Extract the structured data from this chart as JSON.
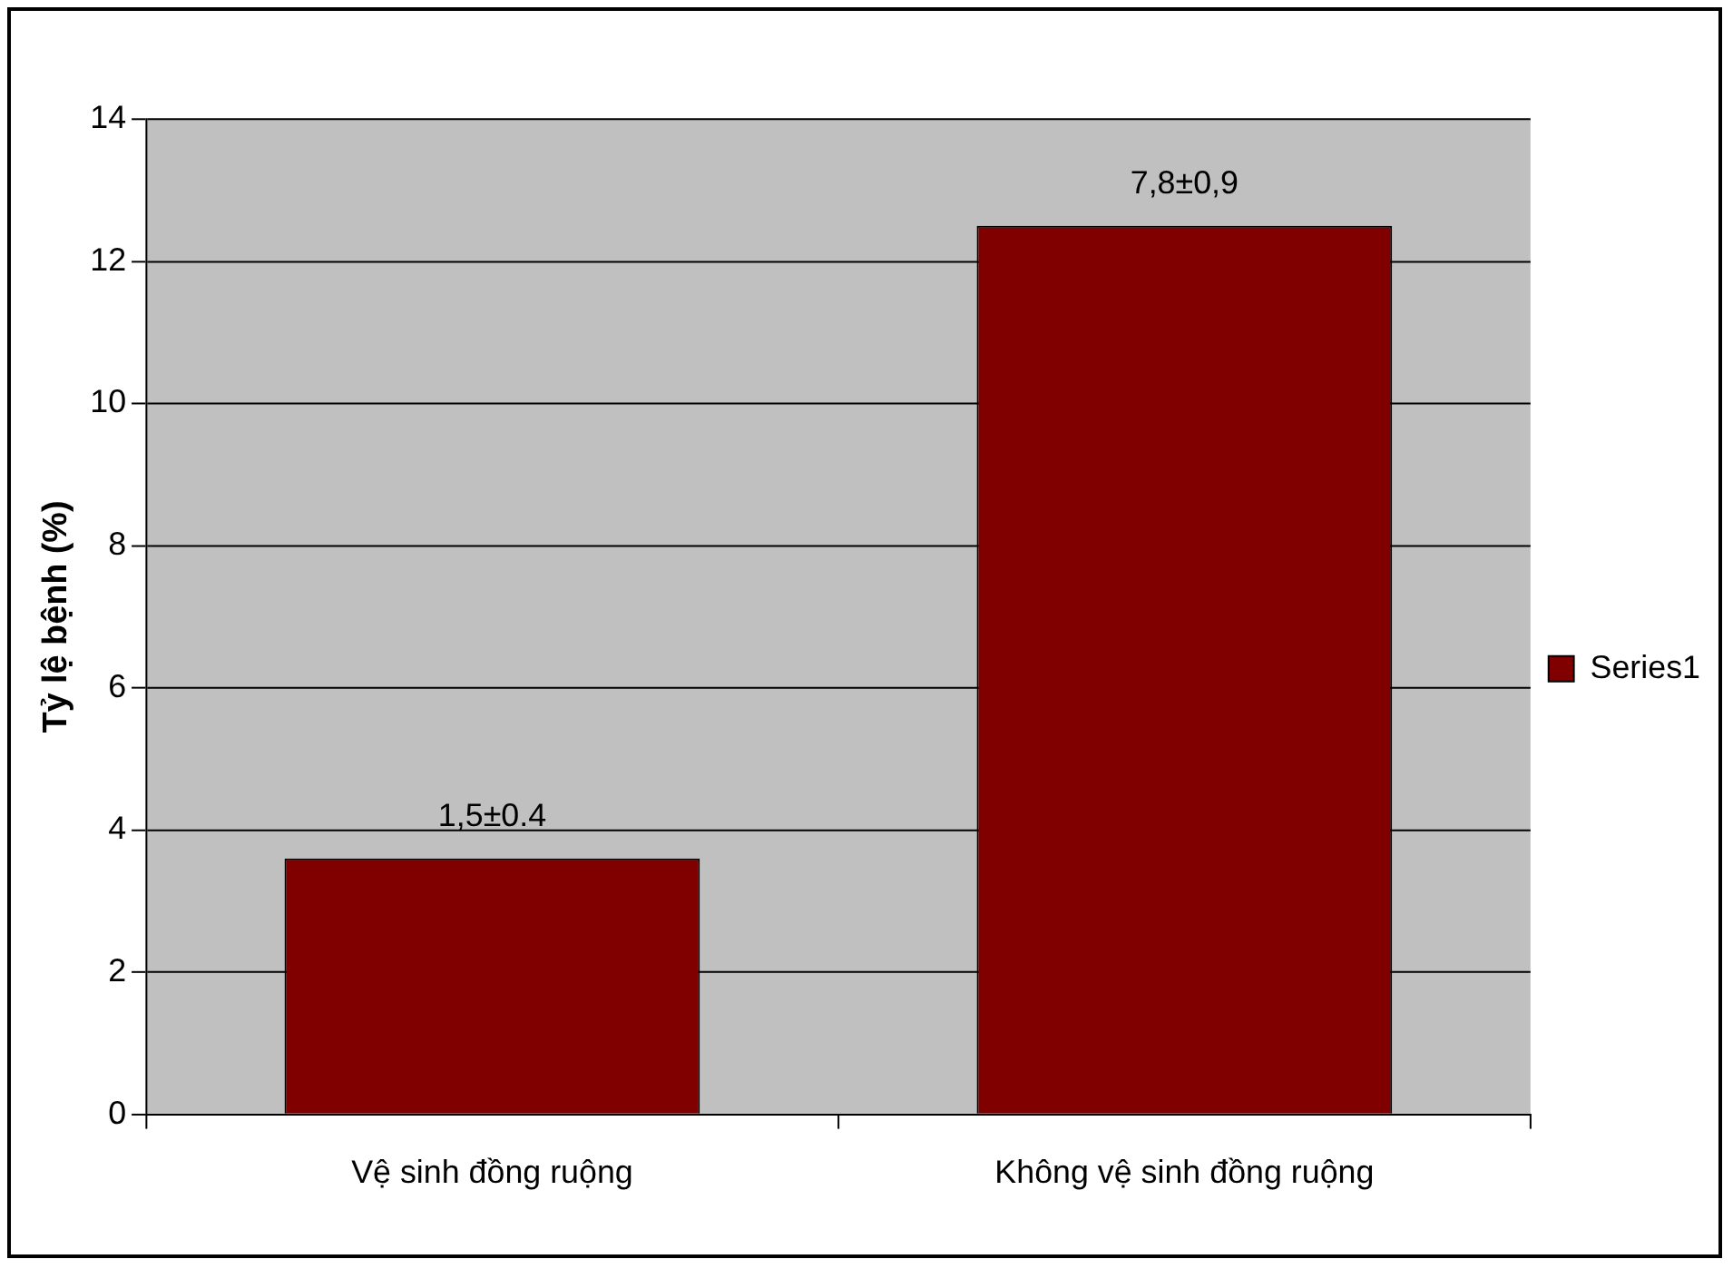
{
  "chart_data": {
    "type": "bar",
    "ylabel": "Tỷ lệ bệnh (%)",
    "categories": [
      "Vệ sinh đồng ruộng",
      "Không vệ sinh đồng ruộng"
    ],
    "series": [
      {
        "name": "Series1",
        "color": "#800000",
        "values": [
          3.6,
          12.5
        ]
      }
    ],
    "annotations": [
      {
        "text": "1,5±0.4",
        "x": "Vệ sinh đồng ruộng",
        "y": 3.6
      },
      {
        "text": "7,8±0,9",
        "x": "Không vệ sinh đồng ruộng",
        "y": 12.5
      }
    ],
    "ylim": [
      0,
      14
    ],
    "yticks": [
      0,
      2,
      4,
      6,
      8,
      10,
      12,
      14
    ],
    "grid": "y",
    "legend": "right"
  }
}
